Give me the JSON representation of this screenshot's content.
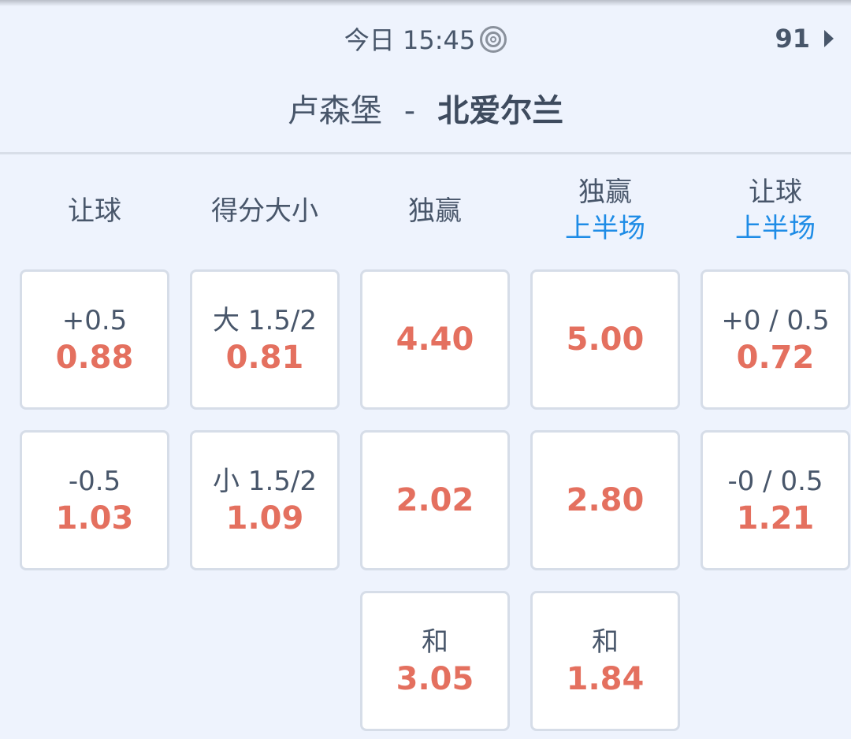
{
  "header": {
    "time": "今日 15:45",
    "more_count": "91",
    "home": "卢森堡",
    "separator": "-",
    "away": "北爱尔兰"
  },
  "columns": [
    {
      "label": "让球",
      "sub": ""
    },
    {
      "label": "得分大小",
      "sub": ""
    },
    {
      "label": "独赢",
      "sub": ""
    },
    {
      "label": "独赢",
      "sub": "上半场"
    },
    {
      "label": "让球",
      "sub": "上半场"
    }
  ],
  "cells": [
    [
      {
        "line": "+0.5",
        "odds": "0.88"
      },
      {
        "line": "-0.5",
        "odds": "1.03"
      }
    ],
    [
      {
        "line": "大 1.5/2",
        "odds": "0.81"
      },
      {
        "line": "小 1.5/2",
        "odds": "1.09"
      }
    ],
    [
      {
        "line": "",
        "odds": "4.40"
      },
      {
        "line": "",
        "odds": "2.02"
      },
      {
        "line": "和",
        "odds": "3.05"
      }
    ],
    [
      {
        "line": "",
        "odds": "5.00"
      },
      {
        "line": "",
        "odds": "2.80"
      },
      {
        "line": "和",
        "odds": "1.84"
      }
    ],
    [
      {
        "line": "+0 / 0.5",
        "odds": "0.72"
      },
      {
        "line": "-0 / 0.5",
        "odds": "1.21"
      }
    ]
  ],
  "colors": {
    "odds": "#e4705f",
    "accent": "#1e8ce6",
    "background": "#eef3fd"
  }
}
